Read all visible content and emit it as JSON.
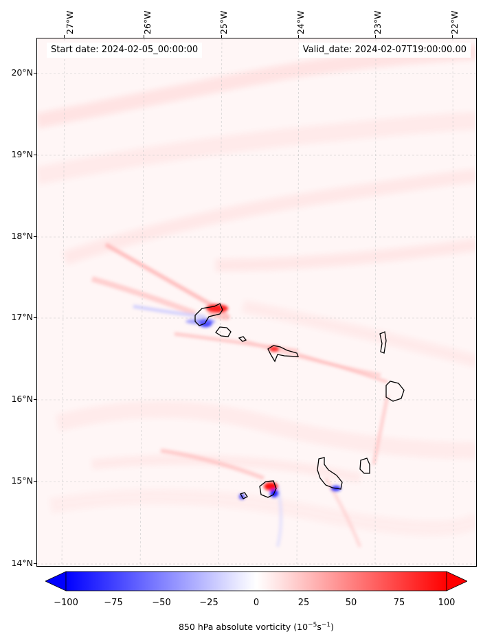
{
  "header": {
    "start_date": "Start date: 2024-02-05_00:00:00",
    "valid_date": "Valid_date: 2024-02-07T19:00:00.00"
  },
  "map": {
    "longitude_labels": [
      "27°W",
      "26°W",
      "25°W",
      "24°W",
      "23°W",
      "22°W"
    ],
    "latitude_labels": [
      "20°N",
      "19°N",
      "18°N",
      "17°N",
      "16°N",
      "15°N",
      "14°N"
    ],
    "field": "850 hPa absolute vorticity",
    "colors": {
      "positive": "#ff0000",
      "negative": "#0000ff",
      "neutral": "#ffffff",
      "coast": "#000000"
    }
  },
  "colorbar": {
    "tick_labels": [
      "−100",
      "−75",
      "−50",
      "−25",
      "0",
      "25",
      "50",
      "75",
      "100"
    ],
    "title_prefix": "850 hPa absolute vorticity (10",
    "title_exp1": "−5",
    "title_mid": "s",
    "title_exp2": "−1",
    "title_suffix": ")",
    "min": -100,
    "max": 100
  }
}
